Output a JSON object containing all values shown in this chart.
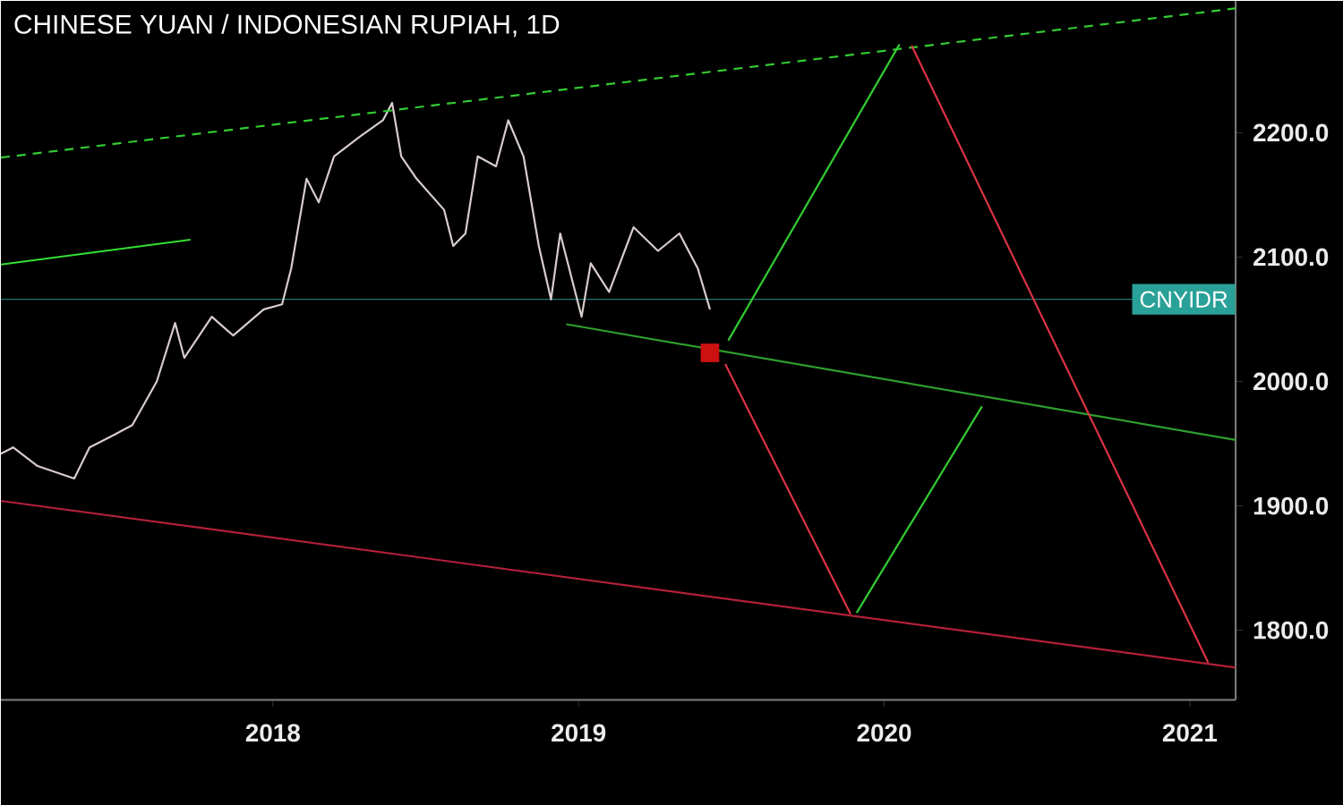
{
  "chart_data": {
    "type": "line",
    "title": "CHINESE YUAN / INDONESIAN RUPIAH, 1D",
    "xlim": [
      2017.11,
      2021.15
    ],
    "ylim": [
      1744,
      2306
    ],
    "xticks": [
      2018,
      2019,
      2020,
      2021
    ],
    "yticks": [
      {
        "value": 1800,
        "label": "1800.0"
      },
      {
        "value": 1900,
        "label": "1900.0"
      },
      {
        "value": 2000,
        "label": "2000.0"
      },
      {
        "value": 2100,
        "label": "2100.0"
      },
      {
        "value": 2200,
        "label": "2200.0"
      }
    ],
    "marker": "none",
    "ref_lines": [
      {
        "axis": "y",
        "value": 2066,
        "label": "CNYIDR",
        "color": "#2aa198"
      }
    ],
    "series": [
      {
        "color": "#d8cccc",
        "x": [
          2017.11,
          2017.15,
          2017.23,
          2017.35,
          2017.4,
          2017.48,
          2017.54,
          2017.62,
          2017.68,
          2017.71,
          2017.8,
          2017.87,
          2017.97,
          2018.03,
          2018.06,
          2018.11,
          2018.15,
          2018.2,
          2018.28,
          2018.36,
          2018.39,
          2018.42,
          2018.47,
          2018.56,
          2018.59,
          2018.63,
          2018.67,
          2018.73,
          2018.77,
          2018.82,
          2018.87,
          2018.91,
          2018.94,
          2019.01,
          2019.04,
          2019.1,
          2019.18,
          2019.26,
          2019.33,
          2019.39,
          2019.43
        ],
        "values": [
          1942,
          1947,
          1932,
          1922,
          1947,
          1957,
          1965,
          2000,
          2047,
          2019,
          2052,
          2037,
          2058,
          2062,
          2091,
          2163,
          2144,
          2181,
          2196,
          2210,
          2224,
          2181,
          2163,
          2138,
          2109,
          2119,
          2181,
          2173,
          2210,
          2181,
          2109,
          2066,
          2119,
          2052,
          2095,
          2072,
          2124,
          2105,
          2119,
          2091,
          2058
        ]
      },
      {
        "color": "#33cc33",
        "line_style": "dashed",
        "x": [
          2017.11,
          2021.15
        ],
        "values": [
          2180,
          2300
        ]
      },
      {
        "color": "#33dd33",
        "x": [
          2017.11,
          2017.73
        ],
        "values": [
          2094,
          2114
        ]
      },
      {
        "color": "#2e9e2e",
        "x": [
          2018.96,
          2021.15
        ],
        "values": [
          2046,
          1953
        ]
      },
      {
        "color": "#b3203a",
        "x": [
          2017.11,
          2021.15
        ],
        "values": [
          1904,
          1770
        ]
      },
      {
        "color": "#33cc33",
        "x": [
          2019.49,
          2020.05
        ],
        "values": [
          2033,
          2271
        ]
      },
      {
        "color": "#dd3344",
        "x": [
          2020.09,
          2021.06
        ],
        "values": [
          2270,
          1774
        ]
      },
      {
        "color": "#dd3344",
        "x": [
          2019.48,
          2019.89
        ],
        "values": [
          2014,
          1813
        ]
      },
      {
        "color": "#33cc33",
        "x": [
          2019.91,
          2020.32
        ],
        "values": [
          1814,
          1980
        ]
      },
      {
        "type": "scatter",
        "marker": "square",
        "color": "#cc1111",
        "x": [
          2019.43
        ],
        "values": [
          2023
        ]
      }
    ]
  }
}
